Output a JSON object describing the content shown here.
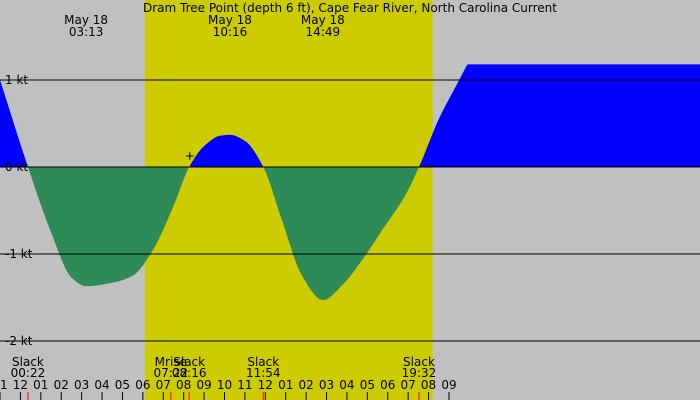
{
  "chart_data": {
    "type": "area",
    "title": "Dram Tree Point (depth 6 ft), Cape Fear River, North Carolina Current",
    "colors": {
      "background": "#c0c0c0",
      "daylight": "#cccc00",
      "flood": "#0000ff",
      "ebb": "#2e8b57",
      "axis": "#000000",
      "hour_tick_major": "#000000",
      "hour_tick_minor": "#ff0000"
    },
    "x_range_hours": [
      -1.0,
      33.3
    ],
    "y_range_kt": [
      -2.0,
      1.0
    ],
    "daylight_hours": [
      6.1,
      20.2
    ],
    "y_ticks": [
      {
        "value": 1,
        "label": "1 kt"
      },
      {
        "value": 0,
        "label": "0 kt"
      },
      {
        "value": -1,
        "label": "-1 kt"
      },
      {
        "value": -2,
        "label": "-2 kt"
      }
    ],
    "x_tick_labels": [
      "11",
      "12",
      "01",
      "02",
      "03",
      "04",
      "05",
      "06",
      "07",
      "08",
      "09",
      "10",
      "11",
      "12",
      "01",
      "02",
      "03",
      "04",
      "05",
      "06",
      "07",
      "08",
      "09"
    ],
    "x_tick_start_hour": -1,
    "top_events": [
      {
        "date": "May 18",
        "time": "03:13",
        "hour": 3.22
      },
      {
        "date": "May 18",
        "time": "10:16",
        "hour": 10.27
      },
      {
        "date": "May 18",
        "time": "14:49",
        "hour": 14.82
      }
    ],
    "bottom_events": [
      {
        "label": "Slack",
        "time": "00:22",
        "hour": 0.37
      },
      {
        "label": "Mrise",
        "time": "07:22",
        "hour": 7.37
      },
      {
        "label": "Slack",
        "time": "08:16",
        "hour": 8.27
      },
      {
        "label": "Slack",
        "time": "11:54",
        "hour": 11.9
      },
      {
        "label": "Slack",
        "time": "19:32",
        "hour": 19.53
      }
    ],
    "marker_hour": 8.3,
    "series": [
      {
        "x": [
          -1.0,
          0.37,
          1.5,
          2.5,
          3.22,
          4.5,
          5.5,
          6.5,
          7.5,
          8.27,
          9.0,
          9.8,
          10.27,
          11.0,
          11.9,
          12.8,
          13.8,
          14.82,
          15.8,
          16.8,
          17.8,
          18.8,
          19.53,
          20.5,
          21.5,
          21.9
        ],
        "y": [
          1.0,
          0.0,
          -0.75,
          -1.27,
          -1.37,
          -1.33,
          -1.25,
          -0.95,
          -0.45,
          0.0,
          0.24,
          0.36,
          0.37,
          0.3,
          0.0,
          -0.6,
          -1.25,
          -1.53,
          -1.35,
          -1.05,
          -0.7,
          -0.35,
          0.0,
          0.55,
          1.0,
          1.18
        ]
      }
    ]
  }
}
